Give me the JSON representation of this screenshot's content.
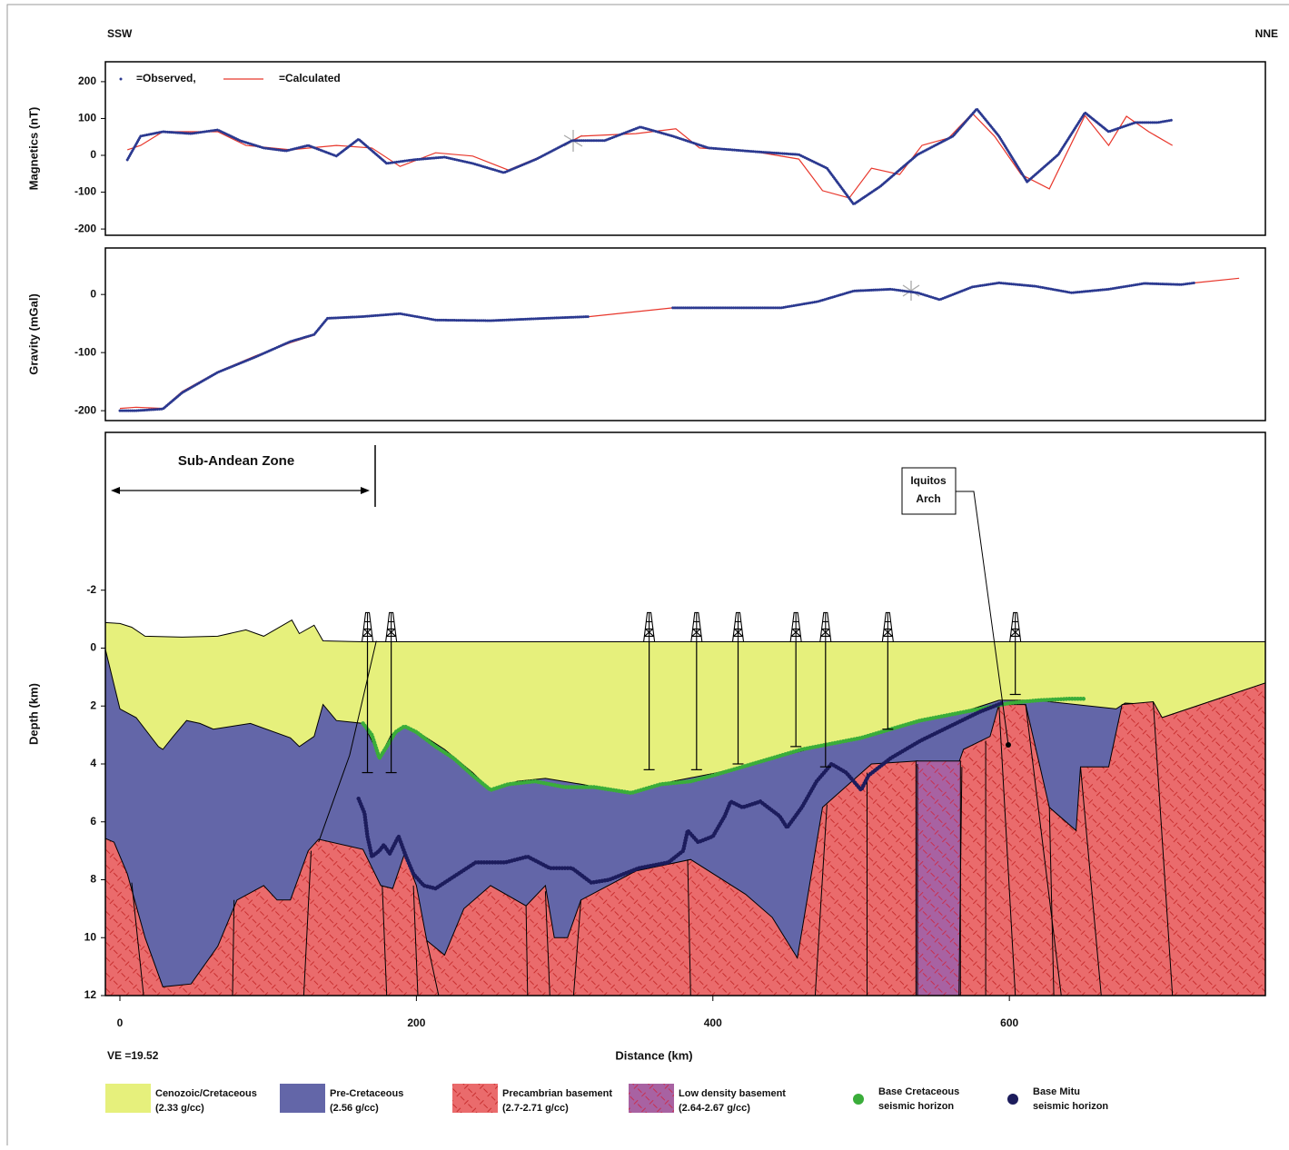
{
  "header": {
    "left": "SSW",
    "right": "NNE"
  },
  "note": "VE =19.52",
  "chart_data": [
    {
      "type": "line",
      "ylabel": "Magnetics (nT)",
      "xlim": [
        -9.8,
        772.7
      ],
      "ylim": [
        -217,
        254
      ],
      "yticks": [
        -200,
        -100,
        0,
        100,
        200
      ],
      "series": [
        {
          "name": "=Observed,",
          "color": "#2b3990",
          "x": [
            5,
            14,
            29,
            48,
            66,
            81,
            97,
            112,
            127,
            146,
            161,
            180,
            198,
            219,
            238,
            259,
            281,
            305,
            327,
            351,
            373,
            397,
            428,
            458,
            477,
            495,
            513,
            538,
            562,
            578,
            593,
            612,
            633,
            651,
            667,
            685,
            700,
            710
          ],
          "values": [
            -12,
            52,
            64,
            59,
            69,
            40,
            20,
            12,
            27,
            -2,
            44,
            -22,
            -12,
            -5,
            -22,
            -47,
            -10,
            40,
            40,
            77,
            52,
            20,
            10,
            2,
            -35,
            -133,
            -84,
            2,
            52,
            126,
            52,
            -72,
            2,
            116,
            64,
            89,
            89,
            96
          ]
        },
        {
          "name": "=Calculated",
          "color": "#e8372c",
          "x": [
            5,
            14,
            29,
            66,
            85,
            115,
            146,
            170,
            189,
            213,
            238,
            262,
            287,
            311,
            348,
            375,
            391,
            428,
            458,
            474,
            492,
            507,
            526,
            541,
            559,
            575,
            590,
            608,
            627,
            651,
            667,
            679,
            694,
            710
          ],
          "values": [
            15,
            27,
            64,
            64,
            27,
            15,
            27,
            20,
            -30,
            7,
            -2,
            -40,
            2,
            52,
            59,
            72,
            20,
            10,
            -10,
            -96,
            -116,
            -35,
            -52,
            27,
            47,
            114,
            52,
            -52,
            -91,
            108,
            27,
            106,
            64,
            27
          ]
        }
      ]
    },
    {
      "type": "line",
      "ylabel": "Gravity (mGal)",
      "xlim": [
        -9.8,
        772.7
      ],
      "ylim": [
        -217,
        80
      ],
      "yticks": [
        -200,
        -100,
        0
      ],
      "series": [
        {
          "name": "Observed",
          "color": "#2b3990",
          "x": [
            0,
            11,
            29,
            42,
            66,
            91,
            115,
            131,
            140,
            164,
            189,
            213,
            250,
            287,
            317,
            345,
            373,
            446,
            471,
            495,
            520,
            538,
            553,
            575,
            593,
            618,
            642,
            667,
            691,
            716,
            725
          ],
          "values": [
            -200,
            -200,
            -197,
            -169,
            -134,
            -108,
            -81,
            -69,
            -41,
            -38,
            -33,
            -44,
            -45,
            -41,
            -38,
            null,
            -23,
            -23,
            -12,
            6,
            9,
            3,
            -9,
            13,
            20,
            14,
            3,
            9,
            19,
            17,
            20
          ]
        },
        {
          "name": "Calculated",
          "color": "#e8372c",
          "x": [
            0,
            11,
            29,
            42,
            66,
            91,
            115,
            131,
            140,
            164,
            189,
            213,
            250,
            287,
            317,
            373,
            446,
            471,
            495,
            520,
            538,
            553,
            575,
            593,
            618,
            642,
            667,
            691,
            716,
            725,
            755
          ],
          "values": [
            -196,
            -194,
            -196,
            -167,
            -133,
            -106,
            -83,
            -70,
            -42,
            -38,
            -33,
            -44,
            -45,
            -41,
            -38,
            -23,
            -23,
            -12,
            6,
            9,
            3,
            -9,
            13,
            20,
            14,
            3,
            9,
            19,
            17,
            20,
            28
          ]
        }
      ]
    },
    {
      "type": "section",
      "ylabel": "Depth (km)",
      "xlabel": "Distance (km)",
      "xlim": [
        -9.8,
        772.7
      ],
      "ylim": [
        -7.45,
        12
      ],
      "y_inverted": true,
      "xticks": [
        0,
        200,
        400,
        600
      ],
      "yticks": [
        -2,
        0,
        2,
        4,
        6,
        8,
        10,
        12
      ],
      "annotations": {
        "zone": "Sub-Andean Zone",
        "arch": [
          "Iquitos",
          "Arch"
        ]
      },
      "layers": [
        {
          "label": [
            "Cenozoic/Cretaceous",
            "(2.33 g/cc)"
          ],
          "color": "#e6f07c"
        },
        {
          "label": [
            "Pre-Cretaceous",
            "(2.56 g/cc)"
          ],
          "color": "#6366a8"
        },
        {
          "label": [
            "Precambrian basement",
            "(2.7-2.71 g/cc)"
          ],
          "color": "#ea6b6c"
        },
        {
          "label": [
            "Low density basement",
            "(2.64-2.67 g/cc)"
          ],
          "color": "#a862a2"
        }
      ],
      "surface": {
        "x": [
          -10,
          0,
          8,
          17,
          42,
          66,
          85,
          97,
          116,
          121,
          131,
          137,
          164,
          773
        ],
        "values": [
          -0.88,
          -0.85,
          -0.72,
          -0.41,
          -0.38,
          -0.41,
          -0.63,
          -0.41,
          -0.97,
          -0.5,
          -0.79,
          -0.25,
          -0.22,
          -0.22
        ]
      },
      "cretaceous_base": {
        "x": [
          -10,
          0,
          11,
          26,
          29,
          36,
          45,
          54,
          63,
          88,
          115,
          121,
          131,
          137,
          146,
          164,
          172,
          175,
          183,
          192,
          201,
          219,
          238,
          250,
          268,
          287,
          311,
          342,
          373,
          403,
          434,
          471,
          501,
          532,
          569,
          593,
          618,
          672,
          678,
          697,
          703,
          773
        ],
        "values": [
          0,
          2.1,
          2.4,
          3.4,
          3.5,
          3.05,
          2.5,
          2.6,
          2.8,
          2.6,
          3.1,
          3.4,
          3.05,
          1.95,
          2.5,
          2.6,
          3.4,
          3.8,
          3.0,
          2.7,
          2.9,
          3.5,
          4.3,
          4.9,
          4.6,
          4.5,
          4.7,
          5.0,
          4.6,
          4.3,
          3.9,
          3.4,
          3.1,
          2.6,
          2.2,
          1.8,
          1.8,
          2.1,
          1.9,
          1.95,
          2.4,
          1.2
        ]
      },
      "basement_top": {
        "x": [
          -10,
          -4,
          5,
          17,
          29,
          48,
          66,
          79,
          97,
          106,
          115,
          127,
          134,
          164,
          176,
          184,
          192,
          200,
          207,
          219,
          232,
          250,
          274,
          287,
          293,
          302,
          311,
          348,
          385,
          422,
          440,
          457,
          474,
          507,
          538,
          565,
          569,
          587,
          593,
          611,
          627,
          645,
          648,
          667,
          676,
          697,
          703,
          773
        ],
        "values": [
          6.57,
          6.7,
          7.8,
          10,
          11.7,
          11.6,
          10.3,
          8.7,
          8.2,
          8.7,
          8.7,
          7.0,
          6.6,
          6.95,
          8.2,
          8.3,
          7.1,
          8.2,
          10.1,
          10.6,
          9.0,
          8.2,
          8.9,
          8.2,
          10.0,
          10.0,
          8.7,
          7.7,
          7.3,
          8.5,
          9.3,
          10.7,
          5.5,
          4.0,
          3.9,
          4.1,
          3.5,
          3.05,
          1.95,
          1.95,
          5.5,
          6.3,
          4.1,
          4.1,
          1.95,
          1.85,
          2.4,
          1.2
        ]
      },
      "low_density_body": {
        "x": [
          537,
          567
        ],
        "top": 3.9
      },
      "faults": [
        {
          "x": [
            16,
            8
          ],
          "values": [
            12,
            8.1
          ]
        },
        {
          "x": [
            76,
            77
          ],
          "values": [
            12,
            8.7
          ]
        },
        {
          "x": [
            124,
            129
          ],
          "values": [
            12,
            7.0
          ]
        },
        {
          "x": [
            134,
            155,
            173
          ],
          "values": [
            6.7,
            3.7,
            -0.25
          ]
        },
        {
          "x": [
            180,
            177
          ],
          "values": [
            12,
            8.2
          ]
        },
        {
          "x": [
            201,
            198
          ],
          "values": [
            12,
            8.2
          ]
        },
        {
          "x": [
            215,
            207
          ],
          "values": [
            12,
            10.1
          ]
        },
        {
          "x": [
            275,
            274
          ],
          "values": [
            12,
            8.9
          ]
        },
        {
          "x": [
            290,
            287
          ],
          "values": [
            12,
            8.4
          ]
        },
        {
          "x": [
            306,
            311
          ],
          "values": [
            12,
            8.7
          ]
        },
        {
          "x": [
            385,
            383
          ],
          "values": [
            12,
            7.3
          ]
        },
        {
          "x": [
            469,
            477
          ],
          "values": [
            12,
            5.4
          ]
        },
        {
          "x": [
            504,
            504
          ],
          "values": [
            12,
            4.3
          ]
        },
        {
          "x": [
            538,
            538
          ],
          "values": [
            12,
            4.0
          ]
        },
        {
          "x": [
            566,
            568
          ],
          "values": [
            12,
            4.1
          ]
        },
        {
          "x": [
            584,
            584
          ],
          "values": [
            12,
            3.2
          ]
        },
        {
          "x": [
            593,
            604
          ],
          "values": [
            1.95,
            12
          ]
        },
        {
          "x": [
            611,
            635
          ],
          "values": [
            1.95,
            12
          ]
        },
        {
          "x": [
            630,
            627
          ],
          "values": [
            12,
            5.5
          ]
        },
        {
          "x": [
            662,
            648
          ],
          "values": [
            12,
            4.1
          ]
        },
        {
          "x": [
            710,
            697
          ],
          "values": [
            12,
            1.85
          ]
        }
      ],
      "horizons": [
        {
          "label": [
            "Base Cretaceous",
            "seismic horizon"
          ],
          "color": "#3aad3a",
          "x": [
            164,
            170,
            175,
            180,
            186,
            192,
            200,
            213,
            225,
            238,
            250,
            262,
            280,
            300,
            320,
            345,
            365,
            385,
            400,
            420,
            440,
            460,
            480,
            500,
            520,
            540,
            560,
            580,
            600,
            620,
            640,
            650
          ],
          "values": [
            2.6,
            3.0,
            3.8,
            3.4,
            2.9,
            2.7,
            2.9,
            3.4,
            3.8,
            4.4,
            4.9,
            4.7,
            4.6,
            4.8,
            4.8,
            5.0,
            4.7,
            4.6,
            4.4,
            4.1,
            3.8,
            3.5,
            3.3,
            3.1,
            2.8,
            2.5,
            2.3,
            2.1,
            1.9,
            1.8,
            1.75,
            1.75
          ]
        },
        {
          "label": [
            "Base Mitu",
            "seismic horizon"
          ],
          "color": "#1c1c5c",
          "x": [
            161,
            165,
            167,
            170,
            175,
            178,
            182,
            188,
            193,
            198,
            205,
            213,
            225,
            240,
            260,
            275,
            290,
            305,
            318,
            330,
            350,
            370,
            380,
            383,
            390,
            400,
            408,
            412,
            420,
            432,
            445,
            450,
            460,
            470,
            475,
            480,
            490,
            500,
            505,
            520,
            540,
            560,
            580,
            595
          ],
          "values": [
            5.2,
            5.7,
            6.5,
            7.2,
            7.0,
            6.8,
            7.1,
            6.5,
            7.2,
            7.8,
            8.2,
            8.3,
            7.9,
            7.4,
            7.4,
            7.2,
            7.6,
            7.6,
            8.1,
            8.0,
            7.6,
            7.4,
            7.0,
            6.3,
            6.7,
            6.5,
            5.8,
            5.3,
            5.5,
            5.3,
            5.8,
            6.2,
            5.5,
            4.6,
            4.3,
            4.0,
            4.3,
            4.9,
            4.4,
            3.8,
            3.2,
            2.7,
            2.2,
            1.9
          ]
        }
      ],
      "wells": {
        "x": [
          167,
          183,
          357,
          389,
          417,
          456,
          476,
          518,
          604
        ],
        "values": [
          4.3,
          4.3,
          4.2,
          4.2,
          4.0,
          3.4,
          4.1,
          2.8,
          1.6
        ]
      }
    }
  ]
}
